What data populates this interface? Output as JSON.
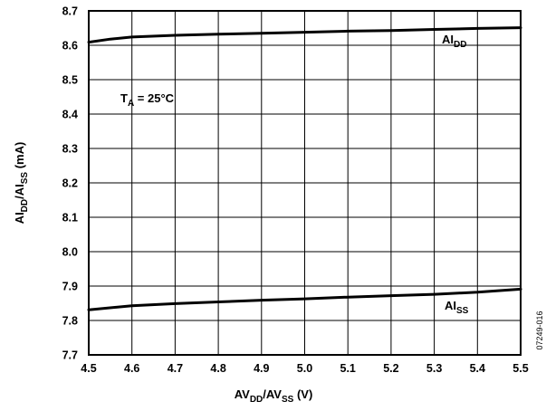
{
  "chart_data": {
    "type": "line",
    "title": "",
    "xlabel": {
      "base": "AV",
      "sub1": "DD",
      "mid": "/AV",
      "sub2": "SS",
      "tail": " (V)"
    },
    "ylabel": {
      "base": "AI",
      "sub1": "DD",
      "mid": "/AI",
      "sub2": "SS",
      "tail": " (mA)"
    },
    "xlim": [
      4.5,
      5.5
    ],
    "ylim": [
      7.7,
      8.7
    ],
    "x_ticks": [
      4.5,
      4.6,
      4.7,
      4.8,
      4.9,
      5.0,
      5.1,
      5.2,
      5.3,
      5.4,
      5.5
    ],
    "x_tick_labels": [
      "4.5",
      "4.6",
      "4.7",
      "4.8",
      "4.9",
      "5.0",
      "5.1",
      "5.2",
      "5.3",
      "5.4",
      "5.5"
    ],
    "y_ticks": [
      7.7,
      7.8,
      7.9,
      8.0,
      8.1,
      8.2,
      8.3,
      8.4,
      8.5,
      8.6,
      8.7
    ],
    "y_tick_labels": [
      "7.7",
      "7.8",
      "7.9",
      "8.0",
      "8.1",
      "8.2",
      "8.3",
      "8.4",
      "8.5",
      "8.6",
      "8.7"
    ],
    "grid": true,
    "series": [
      {
        "name": "AI_DD",
        "label_base": "AI",
        "label_sub": "DD",
        "x": [
          4.5,
          4.55,
          4.6,
          4.7,
          4.8,
          4.9,
          5.0,
          5.1,
          5.2,
          5.3,
          5.4,
          5.5
        ],
        "y": [
          8.609,
          8.618,
          8.624,
          8.629,
          8.632,
          8.635,
          8.638,
          8.641,
          8.643,
          8.646,
          8.649,
          8.651
        ]
      },
      {
        "name": "AI_SS",
        "label_base": "AI",
        "label_sub": "SS",
        "x": [
          4.5,
          4.6,
          4.7,
          4.8,
          4.9,
          5.0,
          5.1,
          5.2,
          5.3,
          5.4,
          5.5
        ],
        "y": [
          7.831,
          7.843,
          7.849,
          7.854,
          7.859,
          7.863,
          7.868,
          7.872,
          7.876,
          7.882,
          7.891
        ]
      }
    ],
    "annotations": {
      "condition": {
        "base": "T",
        "sub": "A",
        "tail": " = 25°C"
      },
      "figure_id": "07249-016"
    }
  }
}
